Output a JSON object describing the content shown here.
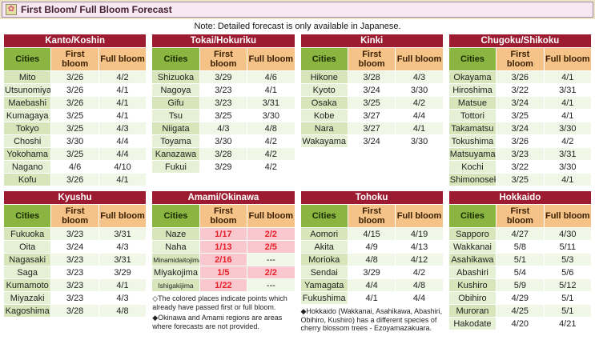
{
  "page": {
    "title": "First Bloom/ Full Bloom Forecast",
    "note": "Note: Detailed forecast is only available in Japanese.",
    "flower_icon": "✿"
  },
  "columns": {
    "cities": "Cities",
    "first": "First bloom",
    "full": "Full bloom"
  },
  "colors": {
    "region_header_bg": "#9c1b30",
    "cities_header_bg": "#89b540",
    "bloom_header_bg": "#f5c288",
    "passed_bg": "#f9c8ce",
    "passed_text": "#e62129"
  },
  "tables": [
    {
      "region": "Kanto/Koshin",
      "rows": [
        {
          "city": "Mito",
          "first": "3/26",
          "full": "4/2"
        },
        {
          "city": "Utsunomiya",
          "first": "3/26",
          "full": "4/1"
        },
        {
          "city": "Maebashi",
          "first": "3/26",
          "full": "4/1"
        },
        {
          "city": "Kumagaya",
          "first": "3/25",
          "full": "4/1"
        },
        {
          "city": "Tokyo",
          "first": "3/25",
          "full": "4/3"
        },
        {
          "city": "Choshi",
          "first": "3/30",
          "full": "4/4"
        },
        {
          "city": "Yokohama",
          "first": "3/25",
          "full": "4/4"
        },
        {
          "city": "Nagano",
          "first": "4/6",
          "full": "4/10"
        },
        {
          "city": "Kofu",
          "first": "3/26",
          "full": "4/1"
        }
      ]
    },
    {
      "region": "Tokai/Hokuriku",
      "rows": [
        {
          "city": "Shizuoka",
          "first": "3/29",
          "full": "4/6"
        },
        {
          "city": "Nagoya",
          "first": "3/23",
          "full": "4/1"
        },
        {
          "city": "Gifu",
          "first": "3/23",
          "full": "3/31"
        },
        {
          "city": "Tsu",
          "first": "3/25",
          "full": "3/30"
        },
        {
          "city": "Niigata",
          "first": "4/3",
          "full": "4/8"
        },
        {
          "city": "Toyama",
          "first": "3/30",
          "full": "4/2"
        },
        {
          "city": "Kanazawa",
          "first": "3/28",
          "full": "4/2"
        },
        {
          "city": "Fukui",
          "first": "3/29",
          "full": "4/2"
        }
      ]
    },
    {
      "region": "Kinki",
      "rows": [
        {
          "city": "Hikone",
          "first": "3/28",
          "full": "4/3"
        },
        {
          "city": "Kyoto",
          "first": "3/24",
          "full": "3/30"
        },
        {
          "city": "Osaka",
          "first": "3/25",
          "full": "4/2"
        },
        {
          "city": "Kobe",
          "first": "3/27",
          "full": "4/4"
        },
        {
          "city": "Nara",
          "first": "3/27",
          "full": "4/1"
        },
        {
          "city": "Wakayama",
          "first": "3/24",
          "full": "3/30"
        }
      ]
    },
    {
      "region": "Chugoku/Shikoku",
      "rows": [
        {
          "city": "Okayama",
          "first": "3/26",
          "full": "4/1"
        },
        {
          "city": "Hiroshima",
          "first": "3/22",
          "full": "3/31"
        },
        {
          "city": "Matsue",
          "first": "3/24",
          "full": "4/1"
        },
        {
          "city": "Tottori",
          "first": "3/25",
          "full": "4/1"
        },
        {
          "city": "Takamatsu",
          "first": "3/24",
          "full": "3/30"
        },
        {
          "city": "Tokushima",
          "first": "3/26",
          "full": "4/2"
        },
        {
          "city": "Matsuyama",
          "first": "3/23",
          "full": "3/31"
        },
        {
          "city": "Kochi",
          "first": "3/22",
          "full": "3/30"
        },
        {
          "city": "Shimonoseki",
          "first": "3/25",
          "full": "4/1"
        }
      ]
    },
    {
      "region": "Kyushu",
      "rows": [
        {
          "city": "Fukuoka",
          "first": "3/23",
          "full": "3/31"
        },
        {
          "city": "Oita",
          "first": "3/24",
          "full": "4/3"
        },
        {
          "city": "Nagasaki",
          "first": "3/23",
          "full": "3/31"
        },
        {
          "city": "Saga",
          "first": "3/23",
          "full": "3/29"
        },
        {
          "city": "Kumamoto",
          "first": "3/23",
          "full": "4/1"
        },
        {
          "city": "Miyazaki",
          "first": "3/23",
          "full": "4/3"
        },
        {
          "city": "Kagoshima",
          "first": "3/28",
          "full": "4/8"
        }
      ]
    },
    {
      "region": "Amami/Okinawa",
      "rows": [
        {
          "city": "Naze",
          "first": "1/17",
          "full": "2/2",
          "first_passed": true,
          "full_passed": true
        },
        {
          "city": "Naha",
          "first": "1/13",
          "full": "2/5",
          "first_passed": true,
          "full_passed": true
        },
        {
          "city": "Minamidaitojima",
          "first": "2/16",
          "full": "---",
          "first_passed": true
        },
        {
          "city": "Miyakojima",
          "first": "1/5",
          "full": "2/2",
          "first_passed": true,
          "full_passed": true
        },
        {
          "city": "Ishigakijima",
          "first": "1/22",
          "full": "---",
          "first_passed": true
        }
      ]
    },
    {
      "region": "Tohoku",
      "rows": [
        {
          "city": "Aomori",
          "first": "4/15",
          "full": "4/19"
        },
        {
          "city": "Akita",
          "first": "4/9",
          "full": "4/13"
        },
        {
          "city": "Morioka",
          "first": "4/8",
          "full": "4/12"
        },
        {
          "city": "Sendai",
          "first": "3/29",
          "full": "4/2"
        },
        {
          "city": "Yamagata",
          "first": "4/4",
          "full": "4/8"
        },
        {
          "city": "Fukushima",
          "first": "4/1",
          "full": "4/4"
        }
      ]
    },
    {
      "region": "Hokkaido",
      "rows": [
        {
          "city": "Sapporo",
          "first": "4/27",
          "full": "4/30"
        },
        {
          "city": "Wakkanai",
          "first": "5/8",
          "full": "5/11"
        },
        {
          "city": "Asahikawa",
          "first": "5/1",
          "full": "5/3"
        },
        {
          "city": "Abashiri",
          "first": "5/4",
          "full": "5/6"
        },
        {
          "city": "Kushiro",
          "first": "5/9",
          "full": "5/12"
        },
        {
          "city": "Obihiro",
          "first": "4/29",
          "full": "5/1"
        },
        {
          "city": "Muroran",
          "first": "4/25",
          "full": "5/1"
        },
        {
          "city": "Hakodate",
          "first": "4/20",
          "full": "4/21"
        }
      ]
    }
  ],
  "footnotes": {
    "colored": "◇The colored places indicate points which already have passed first or full bloom.",
    "okinawa": "◆Okinawa and Amami regions are areas where forecasts are not provided.",
    "hokkaido": "◆Hokkaido (Wakkanai, Asahikawa, Abashiri, Obihiro, Kushiro) has a different species of cherry blossom trees - Ezoyamazakuara."
  }
}
